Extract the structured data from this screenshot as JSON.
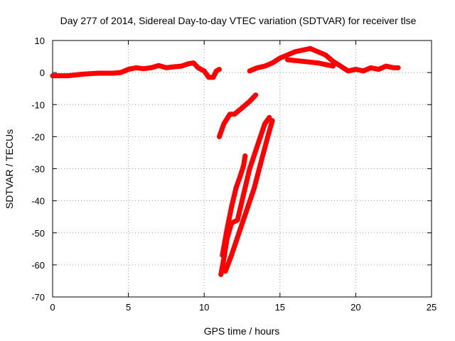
{
  "chart_data": {
    "type": "scatter",
    "title": "Day 277 of 2014, Sidereal Day-to-day VTEC variation (SDTVAR) for receiver tlse",
    "xlabel": "GPS time / hours",
    "ylabel": "SDTVAR / TECUs",
    "xlim": [
      0,
      25
    ],
    "ylim": [
      -70,
      10
    ],
    "xticks": [
      "0",
      "5",
      "10",
      "15",
      "20",
      "25"
    ],
    "yticks": [
      "10",
      "0",
      "-10",
      "-20",
      "-30",
      "-40",
      "-50",
      "-60",
      "-70"
    ],
    "grid": true,
    "color": "#ff0000",
    "series": [
      {
        "name": "baseline-morning",
        "points": [
          [
            0.0,
            -1.0
          ],
          [
            1.0,
            -1.0
          ],
          [
            2.0,
            -0.5
          ],
          [
            3.0,
            -0.2
          ],
          [
            4.0,
            -0.2
          ],
          [
            4.5,
            0.0
          ],
          [
            5.0,
            1.0
          ],
          [
            5.5,
            1.5
          ],
          [
            6.0,
            1.2
          ],
          [
            6.5,
            1.5
          ],
          [
            7.0,
            2.2
          ],
          [
            7.5,
            1.5
          ],
          [
            8.0,
            1.8
          ],
          [
            8.5,
            2.0
          ],
          [
            9.0,
            2.8
          ],
          [
            9.3,
            3.0
          ],
          [
            9.6,
            1.5
          ],
          [
            10.0,
            0.5
          ],
          [
            10.3,
            -1.5
          ],
          [
            10.6,
            -1.5
          ],
          [
            10.8,
            0.5
          ],
          [
            11.0,
            1.0
          ]
        ]
      },
      {
        "name": "baseline-evening",
        "points": [
          [
            13.0,
            0.5
          ],
          [
            13.5,
            1.5
          ],
          [
            14.0,
            2.0
          ],
          [
            14.5,
            3.0
          ],
          [
            15.0,
            4.5
          ],
          [
            15.5,
            5.5
          ],
          [
            16.0,
            6.5
          ],
          [
            16.5,
            7.0
          ],
          [
            17.0,
            7.5
          ],
          [
            17.5,
            6.5
          ],
          [
            18.0,
            5.5
          ],
          [
            18.5,
            3.5
          ],
          [
            19.0,
            2.0
          ],
          [
            19.5,
            0.5
          ],
          [
            20.0,
            1.0
          ],
          [
            20.5,
            0.5
          ],
          [
            21.0,
            1.5
          ],
          [
            21.5,
            1.0
          ],
          [
            22.0,
            2.0
          ],
          [
            22.5,
            1.5
          ],
          [
            22.8,
            1.5
          ]
        ]
      },
      {
        "name": "evening-upper-band",
        "points": [
          [
            15.5,
            4.0
          ],
          [
            16.5,
            3.5
          ],
          [
            17.5,
            3.0
          ],
          [
            18.5,
            2.0
          ]
        ]
      },
      {
        "name": "drop-arc-1",
        "points": [
          [
            11.0,
            -20.0
          ],
          [
            11.3,
            -16.0
          ],
          [
            11.7,
            -13.0
          ],
          [
            12.0,
            -13.0
          ],
          [
            12.5,
            -11.0
          ],
          [
            13.0,
            -9.0
          ],
          [
            13.4,
            -7.0
          ]
        ]
      },
      {
        "name": "drop-arc-2",
        "points": [
          [
            11.1,
            -63.0
          ],
          [
            11.3,
            -58.0
          ],
          [
            11.5,
            -52.0
          ],
          [
            11.8,
            -47.0
          ],
          [
            12.2,
            -46.0
          ],
          [
            12.6,
            -38.0
          ],
          [
            13.0,
            -30.0
          ],
          [
            13.5,
            -23.0
          ],
          [
            14.0,
            -16.0
          ],
          [
            14.3,
            -14.0
          ]
        ]
      },
      {
        "name": "drop-arc-3",
        "points": [
          [
            11.2,
            -57.0
          ],
          [
            11.5,
            -49.0
          ],
          [
            11.8,
            -42.0
          ],
          [
            12.1,
            -36.0
          ],
          [
            12.4,
            -32.0
          ],
          [
            12.6,
            -29.0
          ],
          [
            12.7,
            -26.0
          ]
        ]
      },
      {
        "name": "drop-arc-4",
        "points": [
          [
            11.4,
            -62.0
          ],
          [
            11.8,
            -57.0
          ],
          [
            12.3,
            -50.0
          ],
          [
            12.8,
            -43.0
          ],
          [
            13.3,
            -36.0
          ],
          [
            13.8,
            -27.0
          ],
          [
            14.2,
            -20.0
          ],
          [
            14.5,
            -15.0
          ]
        ]
      }
    ]
  }
}
